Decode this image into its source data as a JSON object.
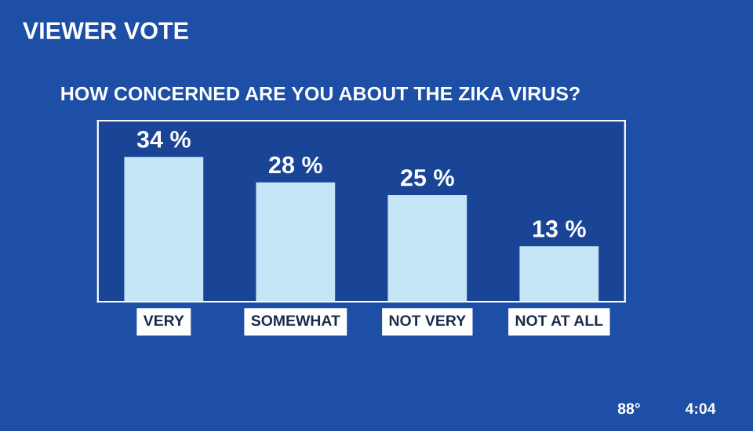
{
  "chart_data": {
    "type": "bar",
    "title": "VIEWER VOTE",
    "subtitle": "HOW CONCERNED ARE YOU ABOUT THE ZIKA VIRUS?",
    "categories": [
      "VERY",
      "SOMEWHAT",
      "NOT VERY",
      "NOT AT ALL"
    ],
    "values": [
      34,
      28,
      25,
      13
    ],
    "value_labels": [
      "34 %",
      "28 %",
      "25 %",
      "13 %"
    ],
    "color": "#c4e6f6",
    "annotations": [
      "88°",
      "4:04"
    ]
  }
}
